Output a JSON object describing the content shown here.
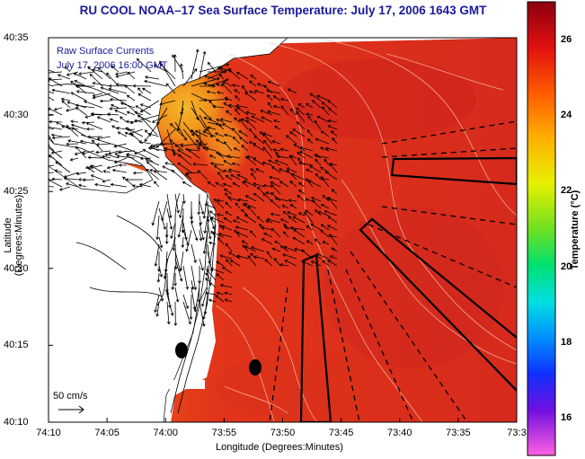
{
  "title": "RU COOL  NOAA–17  Sea Surface Temperature:  July 17, 2006 1643 GMT",
  "overlay": {
    "line1": "Raw Surface Currents",
    "line2": "July 17, 2006 16:00 GMT"
  },
  "axes": {
    "xlabel": "Longitude (Degrees:Minutes)",
    "ylabel": "Latitude (Degrees:Minutes)",
    "xticks": [
      "74:10",
      "74:05",
      "74:00",
      "73:55",
      "73:50",
      "73:45",
      "73:40",
      "73:35",
      "73:3"
    ],
    "yticks": [
      "40:35",
      "40:30",
      "40:25",
      "40:20",
      "40:15",
      "40:10"
    ]
  },
  "colorbar": {
    "label": "Temperature (°C)",
    "ticks": [
      "26",
      "24",
      "22",
      "20",
      "18",
      "16"
    ],
    "range": [
      15,
      27
    ]
  },
  "scale_label": "50 cm/s",
  "colors": {
    "title": "#1a1a9a",
    "sst_warm": "#d42a10",
    "sst_cool": "#f5a020",
    "land": "#ffffff",
    "vector": "#000000"
  }
}
